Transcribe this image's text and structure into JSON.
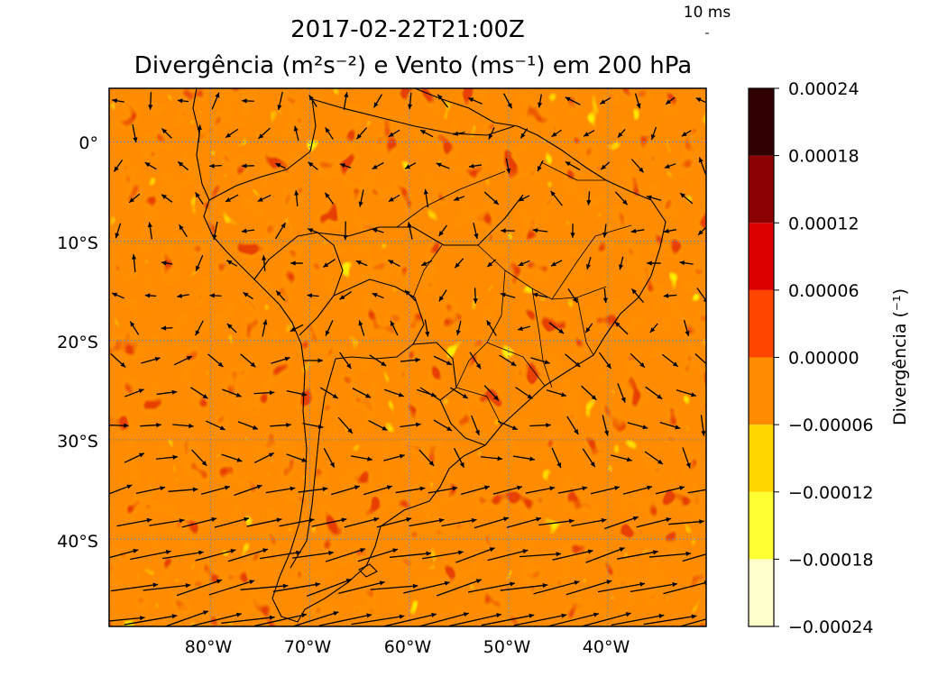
{
  "chart_data": {
    "type": "heatmap",
    "title": "2017-02-22T21:00Z",
    "subtitle": "Divergência (m²s⁻²) e  Vento (ms⁻¹) em 200 hPa",
    "quiver_key": "10 ms",
    "colorbar_label": "Divergência (⁻¹)",
    "x_ticks": [
      "80°W",
      "70°W",
      "60°W",
      "50°W",
      "40°W"
    ],
    "x_tick_values": [
      -80,
      -70,
      -60,
      -50,
      -40
    ],
    "y_ticks": [
      "0°",
      "10°S",
      "20°S",
      "30°S",
      "40°S"
    ],
    "y_tick_values": [
      0,
      -10,
      -20,
      -30,
      -40
    ],
    "xlim": [
      -90.2,
      -30.1
    ],
    "ylim": [
      -48.8,
      5.4
    ],
    "grid": true,
    "colorbar": {
      "levels": [
        -0.00024,
        -0.00018,
        -0.00012,
        -6e-05,
        0.0,
        6e-05,
        0.00012,
        0.00018,
        0.00024
      ],
      "tick_labels": [
        "−0.00024",
        "−0.00018",
        "−0.00012",
        "−0.00006",
        "0.00000",
        "0.00006",
        "0.00012",
        "0.00018",
        "0.00024"
      ],
      "colors": [
        "#ffffcc",
        "#ffff33",
        "#ffd700",
        "#ff8c00",
        "#ff4500",
        "#dd0000",
        "#8b0000",
        "#300000"
      ]
    }
  }
}
